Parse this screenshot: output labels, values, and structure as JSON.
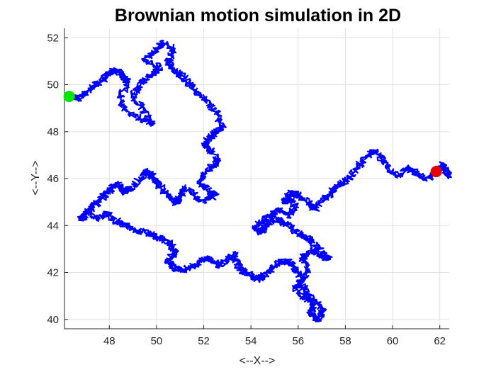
{
  "chart_data": {
    "type": "line",
    "title": "Brownian motion simulation in 2D",
    "xlabel": "<--X-->",
    "ylabel": "<--Y-->",
    "xlim": [
      46.1,
      62.4
    ],
    "ylim": [
      39.6,
      52.4
    ],
    "xticks": [
      48,
      50,
      52,
      54,
      56,
      58,
      60,
      62
    ],
    "yticks": [
      40,
      42,
      44,
      46,
      48,
      50,
      52
    ],
    "xtick_labels": [
      "48",
      "50",
      "52",
      "54",
      "56",
      "58",
      "60",
      "62"
    ],
    "ytick_labels": [
      "40",
      "42",
      "44",
      "46",
      "48",
      "50",
      "52"
    ],
    "grid": true,
    "box": "off",
    "series": [
      {
        "color": "#0000ff",
        "x": [
          46.3,
          46.7,
          47.0,
          47.3,
          47.7,
          48.0,
          48.3,
          48.6,
          48.8,
          48.4,
          48.8,
          49.4,
          49.8,
          49.4,
          49.0,
          49.3,
          49.7,
          50.2,
          49.5,
          49.9,
          50.3,
          50.7,
          50.5,
          50.7,
          51.1,
          51.4,
          51.8,
          52.2,
          52.6,
          52.8,
          52.4,
          52.0,
          52.3,
          52.6,
          52.1,
          51.8,
          52.2,
          52.5,
          52.0,
          51.6,
          51.2,
          51.0,
          50.8,
          50.5,
          50.1,
          49.8,
          49.6,
          49.3,
          48.9,
          48.6,
          48.3,
          48.0,
          47.7,
          47.3,
          47.0,
          46.8,
          47.1,
          47.5,
          47.9,
          48.3,
          48.7,
          49.1,
          49.6,
          50.0,
          50.5,
          50.8,
          50.5,
          50.7,
          51.1,
          51.6,
          51.9,
          52.3,
          52.6,
          53.0,
          53.3,
          53.4,
          53.7,
          54.0,
          54.3,
          54.7,
          55.0,
          55.3,
          55.7,
          55.9,
          56.2,
          55.9,
          56.3,
          56.7,
          56.5,
          56.8,
          57.1,
          56.6,
          56.1,
          56.4,
          56.2,
          56.6,
          56.9,
          57.3,
          56.9,
          56.5,
          56.1,
          55.7,
          55.3,
          54.9,
          54.6,
          54.4,
          54.2,
          54.5,
          54.9,
          55.2,
          55.6,
          55.9,
          55.6,
          55.4,
          55.7,
          56.0,
          56.4,
          56.7,
          57.1,
          57.5,
          57.9,
          58.3,
          58.6,
          58.9,
          59.2,
          59.6,
          59.9,
          60.3,
          60.6,
          61.0,
          61.4,
          61.8,
          62.1,
          62.4,
          62.1,
          61.8
        ],
        "y": [
          49.5,
          49.4,
          49.6,
          49.9,
          50.2,
          50.5,
          50.6,
          50.4,
          50.1,
          49.4,
          48.8,
          48.5,
          48.3,
          49.0,
          49.5,
          50.0,
          50.4,
          50.7,
          51.0,
          51.4,
          51.8,
          51.5,
          51.0,
          50.6,
          50.4,
          50.0,
          49.6,
          49.2,
          48.7,
          48.2,
          47.9,
          47.5,
          47.2,
          46.7,
          46.3,
          45.8,
          45.5,
          45.3,
          45.0,
          45.3,
          45.6,
          45.2,
          44.9,
          45.3,
          45.7,
          46.1,
          46.3,
          46.0,
          45.6,
          45.4,
          45.8,
          45.5,
          45.2,
          44.8,
          44.5,
          44.3,
          44.6,
          44.3,
          44.5,
          44.2,
          44.0,
          43.8,
          43.7,
          43.5,
          43.3,
          42.9,
          42.5,
          42.2,
          42.1,
          42.3,
          42.5,
          42.6,
          42.3,
          42.5,
          42.8,
          42.4,
          42.0,
          41.9,
          41.7,
          42.0,
          42.3,
          42.5,
          42.4,
          42.1,
          41.8,
          41.3,
          40.9,
          40.7,
          40.3,
          40.0,
          40.4,
          40.9,
          41.5,
          42.1,
          42.6,
          43.0,
          42.7,
          42.6,
          43.0,
          43.4,
          43.6,
          43.9,
          44.2,
          44.3,
          44.0,
          43.7,
          43.9,
          44.2,
          44.5,
          44.7,
          44.4,
          44.8,
          45.2,
          45.0,
          45.4,
          45.3,
          45.0,
          44.7,
          45.1,
          45.5,
          45.8,
          46.2,
          46.6,
          46.9,
          47.2,
          46.8,
          46.4,
          46.1,
          46.5,
          46.2,
          46.0,
          46.2,
          46.5,
          46.1,
          46.6,
          46.3
        ]
      }
    ],
    "markers": [
      {
        "role": "start",
        "x": 46.3,
        "y": 49.5,
        "color": "#00e600"
      },
      {
        "role": "end",
        "x": 61.85,
        "y": 46.3,
        "color": "#e60000"
      }
    ]
  }
}
